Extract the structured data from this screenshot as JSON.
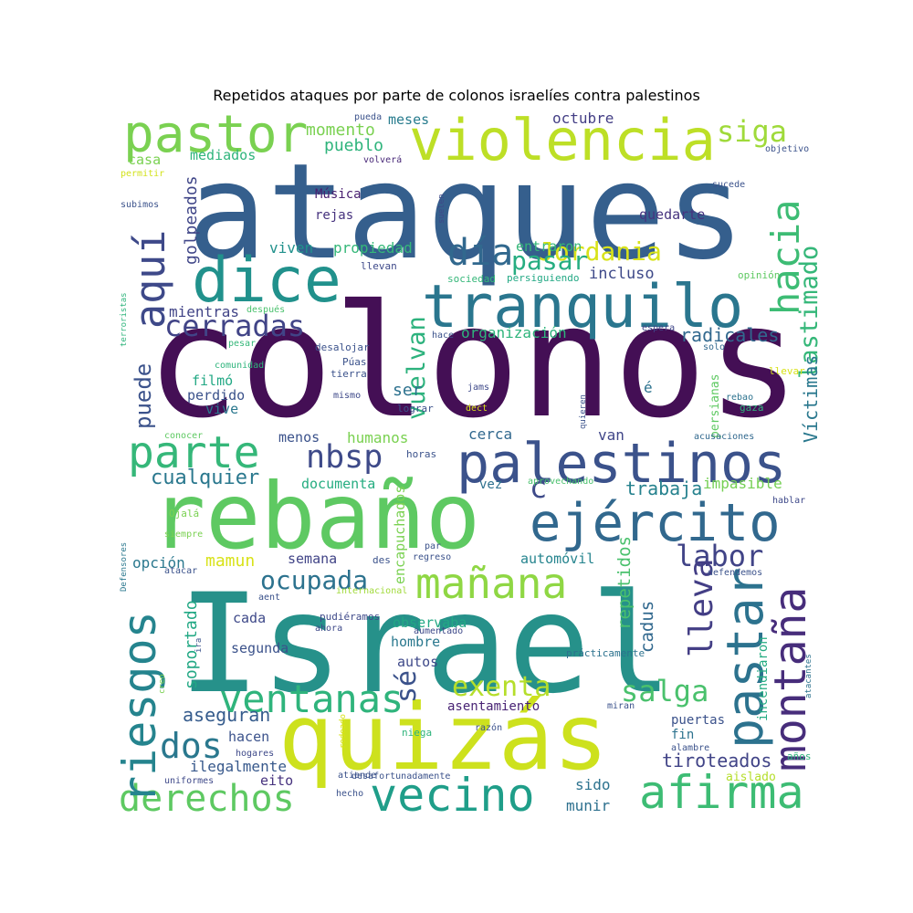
{
  "chart_data": {
    "type": "wordcloud",
    "title": "Repetidos ataques por parte de colonos israelíes contra palestinos",
    "grid": false,
    "legend": "none",
    "background": "#ffffff",
    "colormap": "viridis",
    "words": [
      {
        "text": "colonos",
        "color": "#440f55"
      },
      {
        "text": "ataques",
        "color": "#355f8d"
      },
      {
        "text": "Israel",
        "color": "#26918a"
      },
      {
        "text": "rebaño",
        "color": "#5ec962"
      },
      {
        "text": "quizás",
        "color": "#cde11d"
      },
      {
        "text": "violencia",
        "color": "#bddf26"
      },
      {
        "text": "tranquilo",
        "color": "#2a768e"
      },
      {
        "text": "palestinos",
        "color": "#3b528b"
      },
      {
        "text": "ejército",
        "color": "#31688e"
      },
      {
        "text": "pastor",
        "color": "#7ad151"
      },
      {
        "text": "dice",
        "color": "#21918c"
      },
      {
        "text": "parte",
        "color": "#35b779"
      },
      {
        "text": "pastar",
        "color": "#2c728e"
      },
      {
        "text": "montaña",
        "color": "#472d7b"
      },
      {
        "text": "vecino",
        "color": "#1f9e89"
      },
      {
        "text": "afirma",
        "color": "#3dbc74"
      },
      {
        "text": "derechos",
        "color": "#5ec962"
      },
      {
        "text": "riesgos",
        "color": "#25848e"
      },
      {
        "text": "mañana",
        "color": "#8fd744"
      },
      {
        "text": "ventanas",
        "color": "#2fb47c"
      },
      {
        "text": "aquí",
        "color": "#3e4989"
      },
      {
        "text": "día",
        "color": "#31688e"
      },
      {
        "text": "hacia",
        "color": "#3dbc74"
      },
      {
        "text": "nbsp",
        "color": "#3e4a89"
      },
      {
        "text": "cerradas",
        "color": "#414487"
      },
      {
        "text": "Jordania",
        "color": "#d8e219"
      },
      {
        "text": "siga",
        "color": "#9fda3a"
      },
      {
        "text": "lastimado",
        "color": "#35b779"
      },
      {
        "text": "vuelvan",
        "color": "#2db27d"
      },
      {
        "text": "labor",
        "color": "#414487"
      },
      {
        "text": "lleva",
        "color": "#433e85"
      },
      {
        "text": "ocupada",
        "color": "#2c728e"
      },
      {
        "text": "exenta",
        "color": "#b5de2b"
      },
      {
        "text": "salga",
        "color": "#4ac16d"
      },
      {
        "text": "dos",
        "color": "#2a788e"
      },
      {
        "text": "pasar",
        "color": "#26ad81"
      },
      {
        "text": "sé",
        "color": "#3b528b"
      },
      {
        "text": "c",
        "color": "#3e4a89"
      },
      {
        "text": "Víctimas",
        "color": "#2a788e"
      },
      {
        "text": "puede",
        "color": "#3b528b"
      },
      {
        "text": "radicales",
        "color": "#31688e"
      },
      {
        "text": "cualquier",
        "color": "#2a788e"
      },
      {
        "text": "trabaja",
        "color": "#26828e"
      },
      {
        "text": "repetidos",
        "color": "#4ac16d"
      },
      {
        "text": "cadus",
        "color": "#31688e"
      },
      {
        "text": "soportado",
        "color": "#22a884"
      },
      {
        "text": "golpeados",
        "color": "#404688"
      },
      {
        "text": "aseguran",
        "color": "#365c8d"
      },
      {
        "text": "tiroteados",
        "color": "#414487"
      },
      {
        "text": "incluso",
        "color": "#3e4989"
      },
      {
        "text": "organización",
        "color": "#2fb47c"
      },
      {
        "text": "viven",
        "color": "#21918c"
      },
      {
        "text": "propiedad",
        "color": "#35b779"
      },
      {
        "text": "entraron",
        "color": "#35b779"
      },
      {
        "text": "momento",
        "color": "#7ad151"
      },
      {
        "text": "pueblo",
        "color": "#2fb47c"
      },
      {
        "text": "meses",
        "color": "#287c8e"
      },
      {
        "text": "octubre",
        "color": "#433e85"
      },
      {
        "text": "mediados",
        "color": "#2fb47c"
      },
      {
        "text": "Música",
        "color": "#481f70"
      },
      {
        "text": "rejas",
        "color": "#46327e"
      },
      {
        "text": "quedarte",
        "color": "#46337f"
      },
      {
        "text": "mientras",
        "color": "#414487"
      },
      {
        "text": "filmó",
        "color": "#22a884"
      },
      {
        "text": "perdido",
        "color": "#3b528b"
      },
      {
        "text": "vive",
        "color": "#2a788e"
      },
      {
        "text": "ser",
        "color": "#2c718e"
      },
      {
        "text": "menos",
        "color": "#3b528b"
      },
      {
        "text": "humanos",
        "color": "#7ad151"
      },
      {
        "text": "cerca",
        "color": "#31688e"
      },
      {
        "text": "van",
        "color": "#404688"
      },
      {
        "text": "documenta",
        "color": "#26ad81"
      },
      {
        "text": "vez",
        "color": "#2d708e"
      },
      {
        "text": "encapuchados",
        "color": "#7ad151"
      },
      {
        "text": "semana",
        "color": "#414487"
      },
      {
        "text": "mamun",
        "color": "#d8e219"
      },
      {
        "text": "opción",
        "color": "#2a788e"
      },
      {
        "text": "automóvil",
        "color": "#25848e"
      },
      {
        "text": "impasible",
        "color": "#75d054"
      },
      {
        "text": "cada",
        "color": "#3e4989"
      },
      {
        "text": "segunda",
        "color": "#3b528b"
      },
      {
        "text": "observaba",
        "color": "#22a884"
      },
      {
        "text": "hombre",
        "color": "#2a788e"
      },
      {
        "text": "autos",
        "color": "#3e4989"
      },
      {
        "text": "asentamiento",
        "color": "#482374"
      },
      {
        "text": "hacen",
        "color": "#3b528b"
      },
      {
        "text": "ilegalmente",
        "color": "#38598c"
      },
      {
        "text": "eito",
        "color": "#46327e"
      },
      {
        "text": "sido",
        "color": "#2c728e"
      },
      {
        "text": "munir",
        "color": "#2d708e"
      },
      {
        "text": "puertas",
        "color": "#3b528b"
      },
      {
        "text": "fin",
        "color": "#2c728e"
      },
      {
        "text": "aislado",
        "color": "#b5de2b"
      },
      {
        "text": "incendiaron",
        "color": "#25ac82"
      },
      {
        "text": "persianas",
        "color": "#5ec962"
      },
      {
        "text": "é",
        "color": "#2c728e"
      },
      {
        "text": "casa",
        "color": "#7ad151"
      },
      {
        "text": "permitir",
        "color": "#d2e21b"
      },
      {
        "text": "volverá",
        "color": "#482878"
      },
      {
        "text": "pueda",
        "color": "#3b528b"
      },
      {
        "text": "suelen",
        "color": "#3e4989"
      },
      {
        "text": "sucede",
        "color": "#3b528b"
      },
      {
        "text": "objetivo",
        "color": "#3b528b"
      },
      {
        "text": "subimos",
        "color": "#3b528b"
      },
      {
        "text": "llevan",
        "color": "#3e4989"
      },
      {
        "text": "sociedad",
        "color": "#35b779"
      },
      {
        "text": "persiguiendo",
        "color": "#22a884"
      },
      {
        "text": "opinión",
        "color": "#5ec962"
      },
      {
        "text": "terroristas",
        "color": "#2fb47c"
      },
      {
        "text": "después",
        "color": "#4ac16d"
      },
      {
        "text": "espera",
        "color": "#404688"
      },
      {
        "text": "pesar",
        "color": "#35b779"
      },
      {
        "text": "desalojar",
        "color": "#3b528b"
      },
      {
        "text": "hace",
        "color": "#3b528b"
      },
      {
        "text": "solo",
        "color": "#31688e"
      },
      {
        "text": "comunidad",
        "color": "#2fb47c"
      },
      {
        "text": "Púas",
        "color": "#3b528b"
      },
      {
        "text": "tierra",
        "color": "#3b528b"
      },
      {
        "text": "mismo",
        "color": "#3e4989"
      },
      {
        "text": "jams",
        "color": "#3e4989"
      },
      {
        "text": "llevar",
        "color": "#d8e219"
      },
      {
        "text": "lograr",
        "color": "#3b528b"
      },
      {
        "text": "dect",
        "color": "#d8e219"
      },
      {
        "text": "quieren",
        "color": "#3b528b"
      },
      {
        "text": "rebao",
        "color": "#2c728e"
      },
      {
        "text": "gaza",
        "color": "#2fb47c"
      },
      {
        "text": "conocer",
        "color": "#5ec962"
      },
      {
        "text": "acusaciones",
        "color": "#31688e"
      },
      {
        "text": "horas",
        "color": "#3b528b"
      },
      {
        "text": "aprovechando",
        "color": "#4ac16d"
      },
      {
        "text": "hablar",
        "color": "#3e4989"
      },
      {
        "text": "Ojalá",
        "color": "#7ad151"
      },
      {
        "text": "siempre",
        "color": "#7ad151"
      },
      {
        "text": "par",
        "color": "#3b528b"
      },
      {
        "text": "des",
        "color": "#3b528b"
      },
      {
        "text": "regreso",
        "color": "#3b528b"
      },
      {
        "text": "Defensores",
        "color": "#2a788e"
      },
      {
        "text": "atacar",
        "color": "#3b528b"
      },
      {
        "text": "defendemos",
        "color": "#3b528b"
      },
      {
        "text": "internacional",
        "color": "#a0da39"
      },
      {
        "text": "aent",
        "color": "#3b528b"
      },
      {
        "text": "pudiéramos",
        "color": "#3e4989"
      },
      {
        "text": "ahora",
        "color": "#3e4989"
      },
      {
        "text": "aumentado",
        "color": "#3e4989"
      },
      {
        "text": "ira",
        "color": "#3b528b"
      },
      {
        "text": "prácticamente",
        "color": "#2c728e"
      },
      {
        "text": "creo",
        "color": "#7ad151"
      },
      {
        "text": "atacantes",
        "color": "#2c728e"
      },
      {
        "text": "miran",
        "color": "#3b528b"
      },
      {
        "text": "rodeado",
        "color": "#d8e219"
      },
      {
        "text": "niega",
        "color": "#2fb47c"
      },
      {
        "text": "razón",
        "color": "#3b528b"
      },
      {
        "text": "hogares",
        "color": "#3e4989"
      },
      {
        "text": "alambre",
        "color": "#3b528b"
      },
      {
        "text": "años",
        "color": "#2fb47c"
      },
      {
        "text": "uniformes",
        "color": "#3e4989"
      },
      {
        "text": "atiende",
        "color": "#3b528b"
      },
      {
        "text": "desafortunadamente",
        "color": "#3b528b"
      },
      {
        "text": "hecho",
        "color": "#3b528b"
      }
    ]
  }
}
